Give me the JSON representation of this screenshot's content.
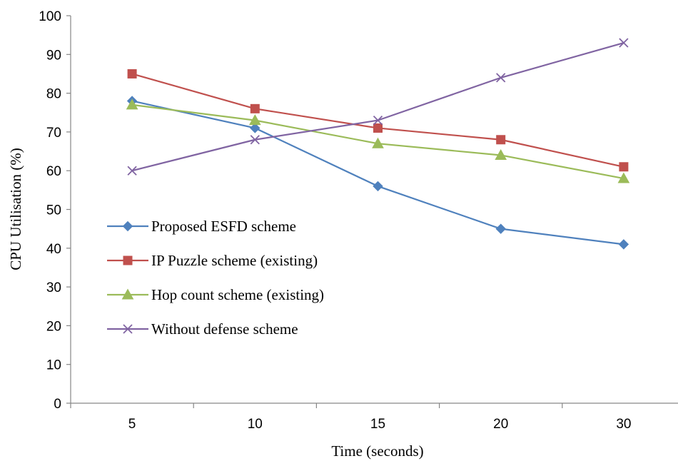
{
  "chart_data": {
    "type": "line",
    "title": "",
    "xlabel": "Time (seconds)",
    "ylabel": "CPU Utilisation (%)",
    "categories": [
      "5",
      "10",
      "15",
      "20",
      "30"
    ],
    "ylim": [
      0,
      100
    ],
    "yticks": [
      "0",
      "10",
      "20",
      "30",
      "40",
      "50",
      "60",
      "70",
      "80",
      "90",
      "100"
    ],
    "grid": false,
    "legend_position": "left-inside",
    "series": [
      {
        "name": "Proposed ESFD scheme",
        "values": [
          78,
          71,
          56,
          45,
          41
        ],
        "color": "#4F81BD",
        "marker": "diamond"
      },
      {
        "name": "IP Puzzle scheme (existing)",
        "values": [
          85,
          76,
          71,
          68,
          61
        ],
        "color": "#C0504D",
        "marker": "square"
      },
      {
        "name": "Hop count scheme (existing)",
        "values": [
          77,
          73,
          67,
          64,
          58
        ],
        "color": "#9BBB59",
        "marker": "triangle"
      },
      {
        "name": "Without defense scheme",
        "values": [
          60,
          68,
          73,
          84,
          93
        ],
        "color": "#8064A2",
        "marker": "x"
      }
    ]
  }
}
